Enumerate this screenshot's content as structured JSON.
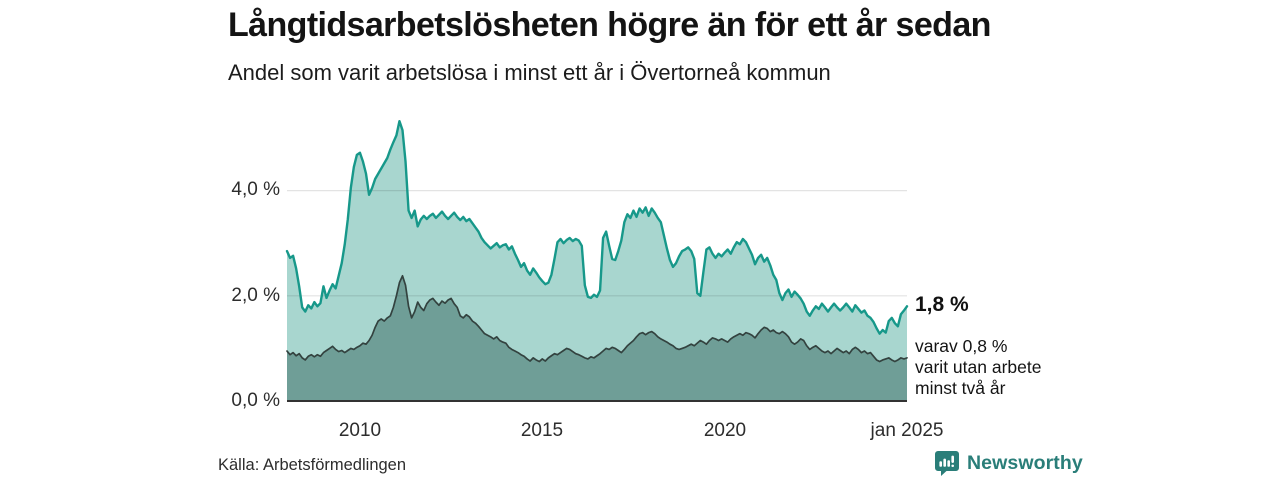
{
  "header": {
    "title": "Långtidsarbetslösheten högre än för ett år sedan",
    "subtitle": "Andel som varit arbetslösa i minst ett år i Övertorneå kommun"
  },
  "annotations": {
    "end_value_label": "1,8 %",
    "sub_lines": [
      "varav 0,8 %",
      "varit utan arbete",
      "minst två år"
    ]
  },
  "footer": {
    "source": "Källa: Arbetsförmedlingen"
  },
  "branding": {
    "name": "Newsworthy",
    "color": "#2a7e79",
    "icon": "newsworthy-logo-icon"
  },
  "colors": {
    "total_line": "#17988a",
    "total_fill": "#a8d6cf",
    "two_year_line": "#33423f",
    "two_year_fill": "#6f9e97",
    "grid_overlay": "rgba(0,0,0,0.11)",
    "baseline": "#333333",
    "axis_text": "#2d2d2d",
    "brand_teal": "#2a7e79"
  },
  "chart_data": {
    "type": "area",
    "title": "Långtidsarbetslösheten högre än för ett år sedan",
    "subtitle": "Andel som varit arbetslösa i minst ett år i Övertorneå kommun",
    "unit": "%",
    "grid": true,
    "x": {
      "start_year": 2008.0,
      "end_year": 2025.0,
      "points_are": "monthly",
      "ticks": [
        {
          "label": "2010",
          "year": 2010
        },
        {
          "label": "2015",
          "year": 2015
        },
        {
          "label": "2020",
          "year": 2020
        },
        {
          "label": "jan 2025",
          "year": 2025
        }
      ]
    },
    "y": {
      "min": 0,
      "max_displayed": 5.7,
      "ticks": [
        {
          "label": "0,0 %",
          "value": 0
        },
        {
          "label": "2,0 %",
          "value": 2
        },
        {
          "label": "4,0 %",
          "value": 4
        }
      ],
      "grid_values": [
        2,
        4
      ]
    },
    "series": [
      {
        "name": "Andel arbetslösa minst ett år",
        "end_label": "1,8 %",
        "end_value": 1.8,
        "line_color": "#17988a",
        "fill_color": "#a8d6cf",
        "line_width": 2.4,
        "values": [
          2.85,
          2.72,
          2.76,
          2.52,
          2.18,
          1.78,
          1.7,
          1.82,
          1.76,
          1.88,
          1.8,
          1.86,
          2.18,
          1.96,
          2.1,
          2.22,
          2.14,
          2.38,
          2.62,
          2.98,
          3.45,
          4.05,
          4.45,
          4.68,
          4.72,
          4.55,
          4.32,
          3.92,
          4.05,
          4.22,
          4.32,
          4.42,
          4.52,
          4.62,
          4.78,
          4.92,
          5.05,
          5.32,
          5.15,
          4.55,
          3.62,
          3.48,
          3.62,
          3.32,
          3.45,
          3.52,
          3.46,
          3.52,
          3.56,
          3.48,
          3.54,
          3.6,
          3.52,
          3.46,
          3.52,
          3.58,
          3.5,
          3.44,
          3.5,
          3.42,
          3.46,
          3.38,
          3.3,
          3.22,
          3.1,
          3.02,
          2.96,
          2.9,
          2.95,
          3.0,
          2.92,
          2.96,
          2.98,
          2.88,
          2.94,
          2.8,
          2.68,
          2.55,
          2.62,
          2.48,
          2.4,
          2.52,
          2.44,
          2.35,
          2.28,
          2.22,
          2.25,
          2.4,
          2.7,
          3.02,
          3.08,
          3.0,
          3.06,
          3.1,
          3.04,
          3.08,
          3.05,
          2.95,
          2.2,
          1.98,
          1.96,
          2.02,
          1.98,
          2.1,
          3.1,
          3.22,
          2.95,
          2.7,
          2.68,
          2.85,
          3.05,
          3.4,
          3.55,
          3.48,
          3.62,
          3.5,
          3.66,
          3.58,
          3.68,
          3.52,
          3.66,
          3.58,
          3.48,
          3.4,
          3.15,
          2.9,
          2.68,
          2.55,
          2.62,
          2.75,
          2.85,
          2.88,
          2.92,
          2.85,
          2.7,
          2.05,
          2.0,
          2.45,
          2.88,
          2.92,
          2.8,
          2.72,
          2.8,
          2.75,
          2.82,
          2.88,
          2.8,
          2.92,
          3.02,
          2.98,
          3.08,
          3.02,
          2.9,
          2.78,
          2.6,
          2.72,
          2.78,
          2.65,
          2.72,
          2.58,
          2.4,
          2.3,
          2.05,
          1.92,
          2.05,
          2.12,
          1.98,
          2.08,
          2.02,
          1.95,
          1.85,
          1.7,
          1.62,
          1.72,
          1.8,
          1.75,
          1.85,
          1.78,
          1.7,
          1.78,
          1.85,
          1.78,
          1.72,
          1.78,
          1.85,
          1.78,
          1.7,
          1.82,
          1.75,
          1.68,
          1.72,
          1.62,
          1.58,
          1.5,
          1.38,
          1.28,
          1.35,
          1.3,
          1.52,
          1.58,
          1.48,
          1.42,
          1.65,
          1.72,
          1.8
        ]
      },
      {
        "name": "Varav utan arbete minst två år",
        "end_label": "0,8 %",
        "end_value": 0.8,
        "line_color": "#33423f",
        "fill_color": "#6f9e97",
        "line_width": 1.7,
        "values": [
          0.95,
          0.88,
          0.92,
          0.86,
          0.9,
          0.82,
          0.78,
          0.85,
          0.88,
          0.84,
          0.88,
          0.85,
          0.92,
          0.96,
          1.0,
          1.04,
          0.98,
          0.94,
          0.96,
          0.92,
          0.96,
          1.0,
          0.98,
          1.02,
          1.05,
          1.1,
          1.08,
          1.15,
          1.25,
          1.4,
          1.52,
          1.56,
          1.52,
          1.58,
          1.62,
          1.78,
          2.0,
          2.25,
          2.38,
          2.2,
          1.8,
          1.58,
          1.7,
          1.88,
          1.78,
          1.72,
          1.85,
          1.92,
          1.95,
          1.88,
          1.82,
          1.9,
          1.86,
          1.92,
          1.95,
          1.85,
          1.78,
          1.62,
          1.58,
          1.64,
          1.6,
          1.52,
          1.48,
          1.42,
          1.35,
          1.28,
          1.25,
          1.22,
          1.18,
          1.22,
          1.15,
          1.12,
          1.1,
          1.02,
          0.98,
          0.95,
          0.92,
          0.88,
          0.85,
          0.8,
          0.76,
          0.82,
          0.78,
          0.75,
          0.8,
          0.76,
          0.82,
          0.86,
          0.9,
          0.88,
          0.92,
          0.96,
          1.0,
          0.98,
          0.94,
          0.9,
          0.88,
          0.85,
          0.82,
          0.8,
          0.84,
          0.82,
          0.86,
          0.9,
          0.95,
          1.0,
          0.98,
          1.02,
          1.0,
          0.96,
          0.92,
          0.98,
          1.05,
          1.1,
          1.15,
          1.22,
          1.28,
          1.3,
          1.26,
          1.3,
          1.32,
          1.28,
          1.22,
          1.18,
          1.15,
          1.12,
          1.08,
          1.05,
          1.0,
          0.98,
          1.0,
          1.02,
          1.05,
          1.08,
          1.05,
          1.1,
          1.15,
          1.12,
          1.08,
          1.15,
          1.2,
          1.18,
          1.15,
          1.18,
          1.15,
          1.12,
          1.18,
          1.22,
          1.25,
          1.28,
          1.25,
          1.3,
          1.28,
          1.25,
          1.2,
          1.28,
          1.35,
          1.4,
          1.38,
          1.32,
          1.35,
          1.3,
          1.28,
          1.32,
          1.28,
          1.22,
          1.12,
          1.08,
          1.12,
          1.18,
          1.15,
          1.05,
          0.98,
          1.02,
          1.05,
          1.0,
          0.95,
          0.92,
          0.95,
          0.9,
          0.95,
          1.0,
          0.96,
          0.92,
          0.95,
          0.9,
          0.98,
          1.02,
          0.98,
          0.92,
          0.95,
          0.9,
          0.92,
          0.85,
          0.78,
          0.75,
          0.78,
          0.8,
          0.82,
          0.78,
          0.75,
          0.78,
          0.82,
          0.8,
          0.82
        ]
      }
    ]
  }
}
